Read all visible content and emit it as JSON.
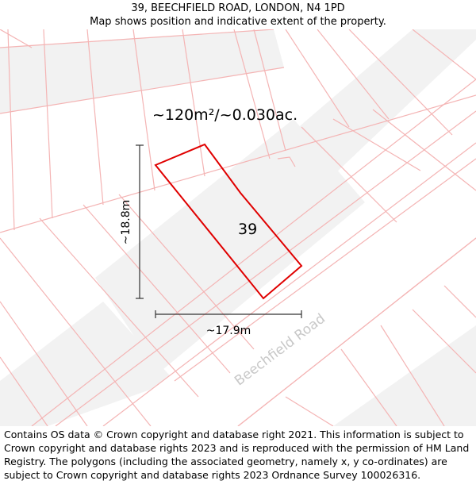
{
  "header": {
    "address": "39, BEECHFIELD ROAD, LONDON, N4 1PD",
    "subtitle": "Map shows position and indicative extent of the property."
  },
  "map": {
    "area_label": "~120m²/~0.030ac.",
    "plot_number": "39",
    "height_dimension": "~18.8m",
    "width_dimension": "~17.9m",
    "road_name": "Beechfield Road",
    "colors": {
      "boundary": "#e00000",
      "parcel_lines": "#f4b4b4",
      "building_fill": "#f2f2f2",
      "road_label": "#c8c8c8"
    }
  },
  "footer": {
    "copyright": "Contains OS data © Crown copyright and database right 2021. This information is subject to Crown copyright and database rights 2023 and is reproduced with the permission of HM Land Registry. The polygons (including the associated geometry, namely x, y co-ordinates) are subject to Crown copyright and database rights 2023 Ordnance Survey 100026316."
  }
}
